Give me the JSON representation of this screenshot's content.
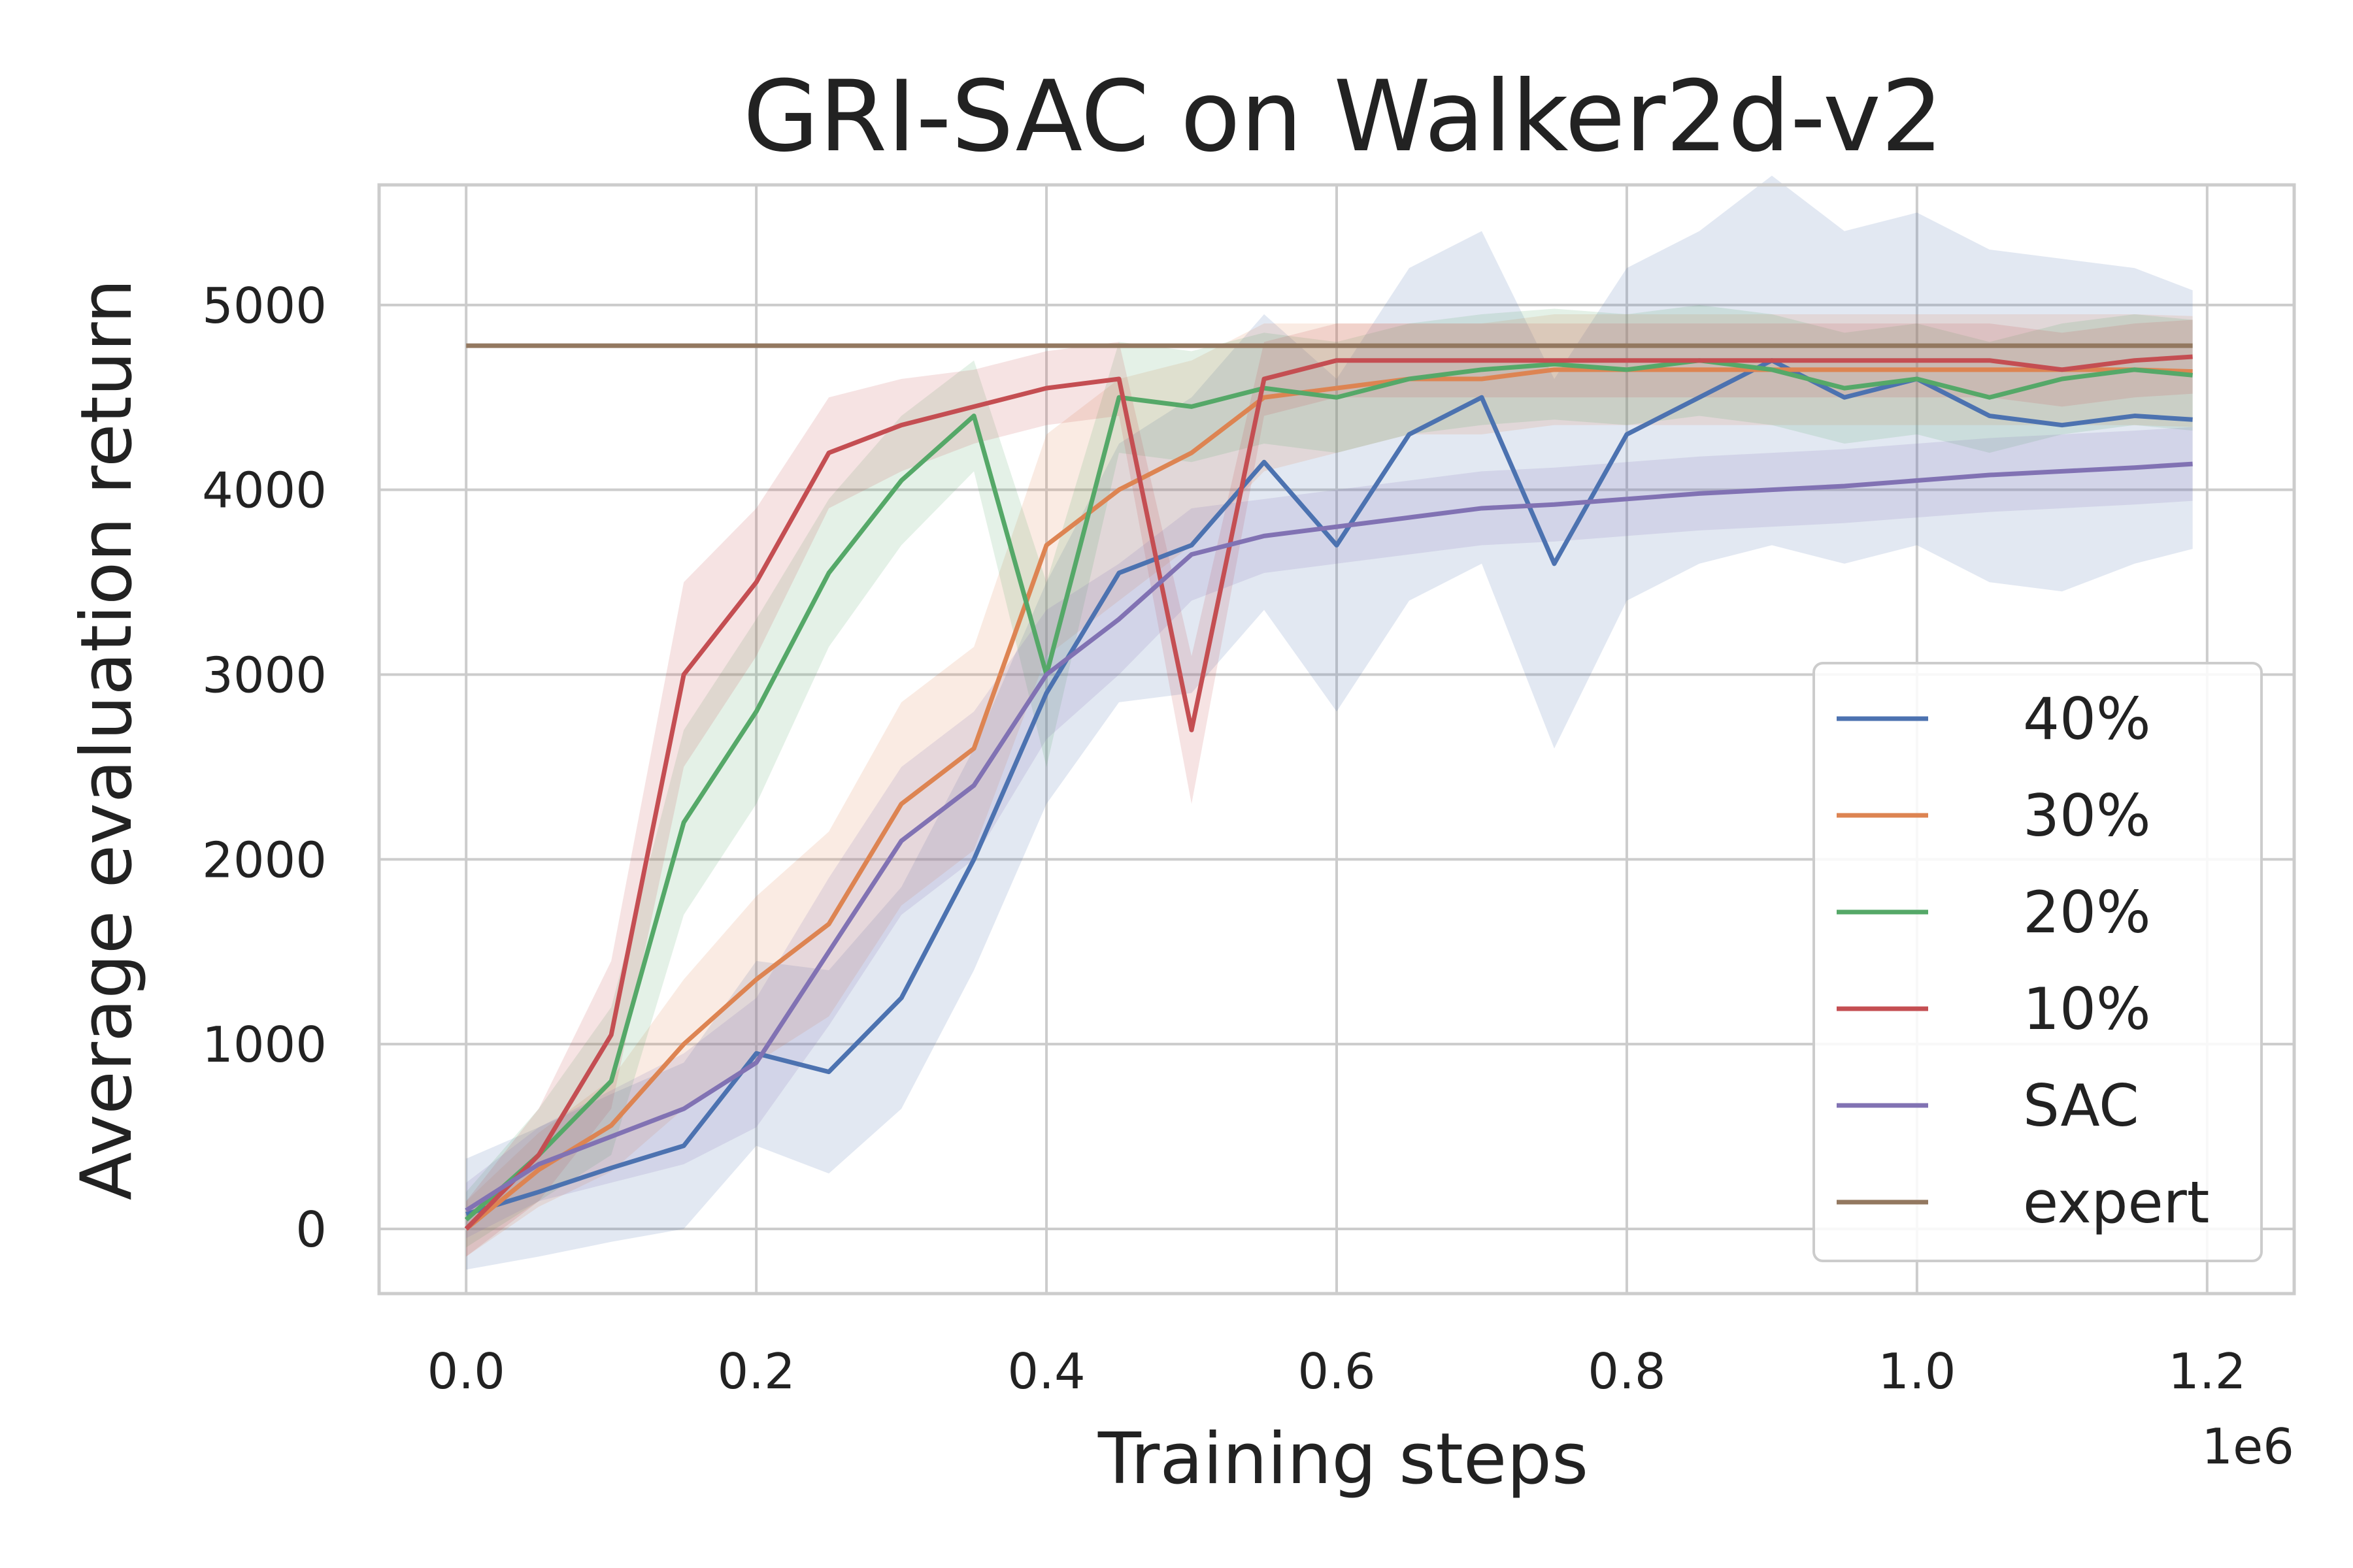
{
  "chart_data": {
    "type": "line",
    "title": "GRI-SAC on Walker2d-v2",
    "xlabel": "Training steps",
    "ylabel": "Average evaluation return",
    "x_offset_label": "1e6",
    "xlim": [
      -0.06,
      1.26
    ],
    "ylim": [
      -350,
      5650
    ],
    "xticks": [
      "0.0",
      "0.2",
      "0.4",
      "0.6",
      "0.8",
      "1.0",
      "1.2"
    ],
    "yticks": [
      "0",
      "1000",
      "2000",
      "3000",
      "4000",
      "5000"
    ],
    "grid": true,
    "legend_placement": "lower-right",
    "x": [
      0.0,
      0.05,
      0.1,
      0.15,
      0.2,
      0.25,
      0.3,
      0.35,
      0.4,
      0.45,
      0.5,
      0.55,
      0.6,
      0.65,
      0.7,
      0.75,
      0.8,
      0.85,
      0.9,
      0.95,
      1.0,
      1.05,
      1.1,
      1.15,
      1.19
    ],
    "series": [
      {
        "name": "40%",
        "color": "#4c72b0",
        "values": [
          80,
          200,
          330,
          450,
          950,
          850,
          1250,
          2000,
          2900,
          3550,
          3700,
          4150,
          3700,
          4300,
          4500,
          3600,
          4300,
          4500,
          4700,
          4500,
          4600,
          4400,
          4350,
          4400,
          4380
        ],
        "band": [
          300,
          350,
          400,
          450,
          500,
          550,
          600,
          600,
          600,
          700,
          800,
          800,
          900,
          900,
          900,
          1000,
          900,
          900,
          1000,
          900,
          900,
          900,
          900,
          800,
          700
        ]
      },
      {
        "name": "30%",
        "color": "#dd8452",
        "values": [
          0,
          320,
          560,
          1000,
          1350,
          1650,
          2300,
          2600,
          3700,
          4000,
          4200,
          4500,
          4550,
          4600,
          4600,
          4650,
          4650,
          4650,
          4650,
          4650,
          4650,
          4650,
          4650,
          4650,
          4640
        ],
        "band": [
          150,
          200,
          250,
          350,
          450,
          500,
          550,
          550,
          600,
          600,
          500,
          400,
          350,
          300,
          300,
          300,
          300,
          300,
          300,
          300,
          300,
          300,
          300,
          300,
          300
        ]
      },
      {
        "name": "20%",
        "color": "#55a868",
        "values": [
          50,
          400,
          800,
          2200,
          2800,
          3550,
          4050,
          4400,
          3000,
          4500,
          4450,
          4550,
          4500,
          4600,
          4650,
          4680,
          4650,
          4700,
          4650,
          4550,
          4600,
          4500,
          4600,
          4650,
          4620
        ],
        "band": [
          150,
          250,
          400,
          500,
          500,
          400,
          350,
          300,
          500,
          300,
          300,
          300,
          300,
          300,
          300,
          300,
          300,
          300,
          300,
          300,
          300,
          300,
          300,
          300,
          300
        ]
      },
      {
        "name": "10%",
        "color": "#c44e52",
        "values": [
          0,
          400,
          1050,
          3000,
          3500,
          4200,
          4350,
          4450,
          4550,
          4600,
          2700,
          4600,
          4700,
          4700,
          4700,
          4700,
          4700,
          4700,
          4700,
          4700,
          4700,
          4700,
          4650,
          4700,
          4720
        ],
        "band": [
          150,
          250,
          400,
          500,
          400,
          300,
          250,
          200,
          200,
          200,
          400,
          200,
          200,
          200,
          200,
          200,
          200,
          200,
          200,
          200,
          200,
          200,
          200,
          200,
          200
        ]
      },
      {
        "name": "SAC",
        "color": "#8172b3",
        "values": [
          100,
          350,
          500,
          650,
          900,
          1500,
          2100,
          2400,
          3000,
          3300,
          3650,
          3750,
          3800,
          3850,
          3900,
          3920,
          3950,
          3980,
          4000,
          4020,
          4050,
          4080,
          4100,
          4120,
          4140
        ],
        "band": [
          150,
          200,
          250,
          300,
          350,
          400,
          400,
          400,
          350,
          300,
          250,
          200,
          200,
          200,
          200,
          200,
          200,
          200,
          200,
          200,
          200,
          200,
          200,
          200,
          200
        ]
      },
      {
        "name": "expert",
        "color": "#937860",
        "values": [
          4780,
          4780,
          4780,
          4780,
          4780,
          4780,
          4780,
          4780,
          4780,
          4780,
          4780,
          4780,
          4780,
          4780,
          4780,
          4780,
          4780,
          4780,
          4780,
          4780,
          4780,
          4780,
          4780,
          4780,
          4780
        ],
        "band": null
      }
    ]
  }
}
